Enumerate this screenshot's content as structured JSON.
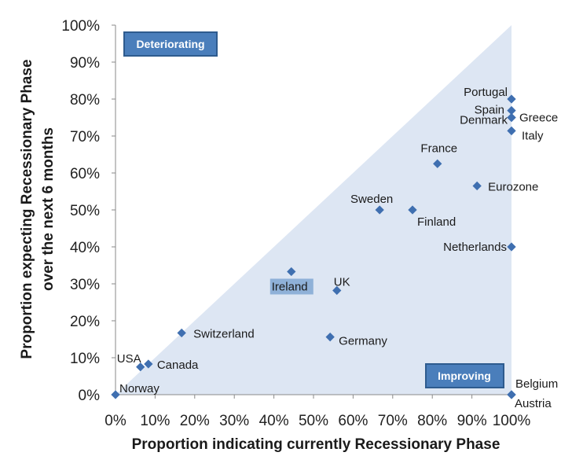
{
  "chart_data": {
    "type": "scatter",
    "xlabel": "Proportion indicating currently Recessionary Phase",
    "ylabel_line1": "Proportion expecting Recessionary Phase",
    "ylabel_line2": "over the next 6 months",
    "xlim": [
      0,
      100
    ],
    "ylim": [
      0,
      100
    ],
    "ticks": [
      0,
      10,
      20,
      30,
      40,
      50,
      60,
      70,
      80,
      90,
      100
    ],
    "tick_labels": [
      "0%",
      "10%",
      "20%",
      "30%",
      "40%",
      "50%",
      "60%",
      "70%",
      "80%",
      "90%",
      "100%"
    ],
    "grid": false,
    "shaded_region": "below diagonal y = x",
    "region_labels": {
      "upper_left": "Deteriorating",
      "lower_right": "Improving"
    },
    "points": [
      {
        "label": "Portugal",
        "x": 100,
        "y": 80
      },
      {
        "label": "Spain",
        "x": 100,
        "y": 76.9
      },
      {
        "label": "Denmark",
        "x": 100,
        "y": 75
      },
      {
        "label": "Greece",
        "x": 100,
        "y": 75
      },
      {
        "label": "Italy",
        "x": 100,
        "y": 71.4
      },
      {
        "label": "France",
        "x": 81.3,
        "y": 62.5
      },
      {
        "label": "Eurozone",
        "x": 91.3,
        "y": 56.5
      },
      {
        "label": "Sweden",
        "x": 66.7,
        "y": 50
      },
      {
        "label": "Finland",
        "x": 75,
        "y": 50
      },
      {
        "label": "Netherlands",
        "x": 100,
        "y": 40
      },
      {
        "label": "Ireland",
        "x": 44.4,
        "y": 33.3
      },
      {
        "label": "UK",
        "x": 55.9,
        "y": 28.2
      },
      {
        "label": "Switzerland",
        "x": 16.7,
        "y": 16.7
      },
      {
        "label": "Germany",
        "x": 54.2,
        "y": 15.6
      },
      {
        "label": "Canada",
        "x": 8.3,
        "y": 8.3
      },
      {
        "label": "USA",
        "x": 6.3,
        "y": 7.5
      },
      {
        "label": "Norway",
        "x": 0,
        "y": 0
      },
      {
        "label": "Belgium",
        "x": 100,
        "y": 0
      },
      {
        "label": "Austria",
        "x": 100,
        "y": 0
      }
    ],
    "colors": {
      "marker": "#3f6fb0",
      "shade": "#dde6f3",
      "box_fill": "#4a7ebb",
      "box_border": "#2e5b8e",
      "ireland_highlight": "#8fb1d8"
    }
  }
}
